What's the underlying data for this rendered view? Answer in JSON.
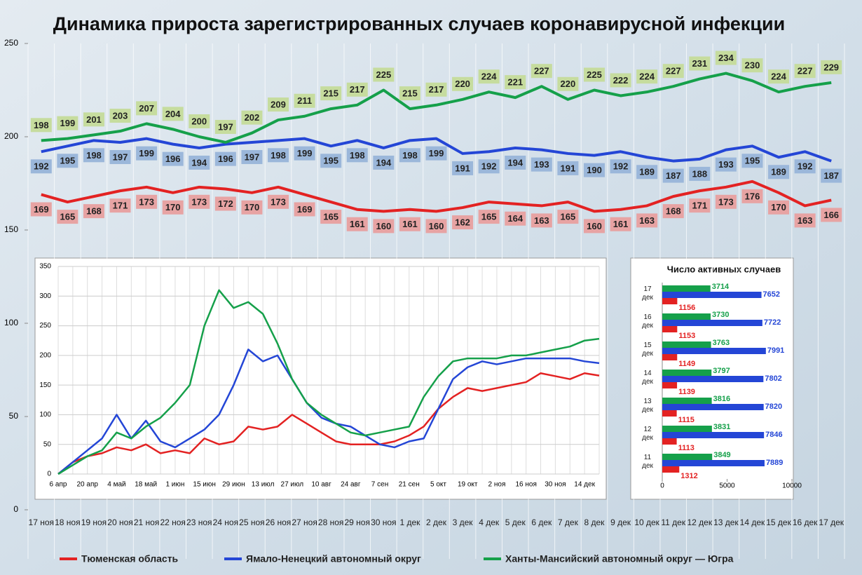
{
  "chart_data": [
    {
      "type": "line",
      "title": "Динамика прироста зарегистрированных случаев коронавирусной инфекции",
      "categories": [
        "17 ноя",
        "18 ноя",
        "19 ноя",
        "20 ноя",
        "21 ноя",
        "22 ноя",
        "23 ноя",
        "24 ноя",
        "25 ноя",
        "26 ноя",
        "27 ноя",
        "28 ноя",
        "29 ноя",
        "30 ноя",
        "1 дек",
        "2 дек",
        "3 дек",
        "4 дек",
        "5 дек",
        "6 дек",
        "7 дек",
        "8 дек",
        "9 дек",
        "10 дек",
        "11 дек",
        "12 дек",
        "13 дек",
        "14 дек",
        "15 дек",
        "16 дек",
        "17 дек"
      ],
      "series": [
        {
          "name": "Тюменская область",
          "color": "#e32222",
          "label_fill": "#e7a3a3",
          "values": [
            169,
            165,
            168,
            171,
            173,
            170,
            173,
            172,
            170,
            173,
            169,
            165,
            161,
            160,
            161,
            160,
            162,
            165,
            164,
            163,
            165,
            160,
            161,
            163,
            168,
            171,
            173,
            176,
            170,
            163,
            166
          ]
        },
        {
          "name": "Ямало-Ненецкий автономный округ",
          "color": "#2446d6",
          "label_fill": "#9bb7da",
          "values": [
            192,
            195,
            198,
            197,
            199,
            196,
            194,
            196,
            197,
            198,
            199,
            195,
            198,
            194,
            198,
            199,
            191,
            192,
            194,
            193,
            191,
            190,
            192,
            189,
            187,
            188,
            193,
            195,
            189,
            192,
            187
          ]
        },
        {
          "name": "Ханты-Мансийский автономный округ — Югра",
          "color": "#15a04a",
          "label_fill": "#c6dc9e",
          "values": [
            198,
            199,
            201,
            203,
            207,
            204,
            200,
            197,
            202,
            209,
            211,
            215,
            217,
            225,
            215,
            217,
            220,
            224,
            221,
            227,
            220,
            225,
            222,
            224,
            227,
            231,
            234,
            230,
            224,
            227,
            229
          ]
        }
      ],
      "ylim": [
        0,
        250
      ],
      "yticks": [
        0,
        50,
        100,
        150,
        200,
        250
      ],
      "data_labels": true
    },
    {
      "type": "line",
      "categories": [
        "6 апр",
        null,
        "20 апр",
        null,
        "4 май",
        null,
        "18 май",
        null,
        "1 июн",
        null,
        "15 июн",
        null,
        "29 июн",
        null,
        "13 июл",
        null,
        "27 июл",
        null,
        "10 авг",
        null,
        "24 авг",
        null,
        "7 сен",
        null,
        "21 сен",
        null,
        "5 окт",
        null,
        "19 окт",
        null,
        "2 ноя",
        null,
        "16 ноя",
        null,
        "30 ноя",
        null,
        "14 дек",
        null
      ],
      "series": [
        {
          "color": "#e32222",
          "values": [
            0,
            20,
            30,
            35,
            45,
            40,
            50,
            35,
            40,
            35,
            60,
            50,
            55,
            80,
            75,
            80,
            100,
            85,
            70,
            55,
            50,
            50,
            50,
            55,
            65,
            80,
            110,
            130,
            145,
            140,
            145,
            150,
            155,
            170,
            165,
            160,
            170,
            166
          ]
        },
        {
          "color": "#2446d6",
          "values": [
            0,
            20,
            40,
            60,
            100,
            60,
            90,
            55,
            45,
            60,
            75,
            100,
            150,
            210,
            190,
            200,
            160,
            120,
            95,
            85,
            80,
            65,
            50,
            45,
            55,
            60,
            110,
            160,
            180,
            190,
            185,
            190,
            195,
            195,
            195,
            195,
            190,
            187
          ]
        },
        {
          "color": "#15a04a",
          "values": [
            0,
            15,
            30,
            40,
            70,
            60,
            80,
            95,
            120,
            150,
            250,
            310,
            280,
            290,
            270,
            220,
            160,
            120,
            100,
            85,
            70,
            65,
            70,
            75,
            80,
            130,
            165,
            190,
            195,
            195,
            195,
            200,
            200,
            205,
            210,
            215,
            225,
            228
          ]
        }
      ],
      "ylim": [
        0,
        350
      ],
      "yticks": [
        0,
        50,
        100,
        150,
        200,
        250,
        300,
        350
      ],
      "grid": true
    },
    {
      "type": "barh",
      "title": "Число активных случаев",
      "categories": [
        "17 дек",
        "16 дек",
        "15 дек",
        "14 дек",
        "13 дек",
        "12 дек",
        "11 дек"
      ],
      "series": [
        {
          "color": "#15a04a",
          "values": [
            3714,
            3730,
            3763,
            3797,
            3816,
            3831,
            3849
          ]
        },
        {
          "color": "#2446d6",
          "values": [
            7652,
            7722,
            7991,
            7802,
            7820,
            7846,
            7889
          ]
        },
        {
          "color": "#e32222",
          "values": [
            1156,
            1153,
            1149,
            1139,
            1115,
            1113,
            1312
          ]
        }
      ],
      "xlim": [
        0,
        10000
      ],
      "xticks": [
        0,
        5000,
        10000
      ],
      "data_labels": true
    }
  ]
}
